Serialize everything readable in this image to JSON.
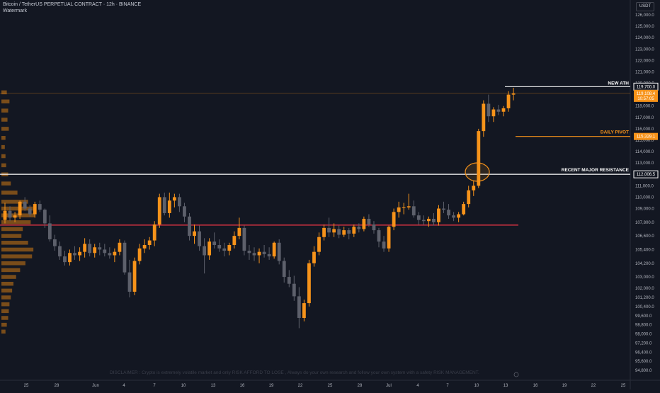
{
  "header": {
    "title": "Bitcoin / TetherUS PERPETUAL CONTRACT · 12h · BINANCE",
    "watermark": "Watermark",
    "currency": "USDT"
  },
  "disclaimer": "DISCLAIMER : Crypto is extremely volatile market and only RISK AFFORD TO LOSE , Always do your own research and follow your own system with a safety RISK MANAGEMENT.",
  "colors": {
    "background": "#131722",
    "bull": "#f7931a",
    "bear": "#5d606b",
    "resistance_line": "#ffffff",
    "pivot_line": "#f7931a",
    "support_line": "#f23645"
  },
  "chart_data": {
    "type": "candlestick",
    "x_tick_labels": [
      "25",
      "28",
      "Jun",
      "4",
      "7",
      "10",
      "13",
      "16",
      "19",
      "22",
      "25",
      "28",
      "Jul",
      "4",
      "7",
      "10",
      "13",
      "16",
      "19",
      "22",
      "25"
    ],
    "y_tick_labels": [
      "126,000.0",
      "125,000.0",
      "124,000.0",
      "123,000.0",
      "122,000.0",
      "121,000.0",
      "120,000.0",
      "118,000.0",
      "117,000.0",
      "116,000.0",
      "115,000.0",
      "114,000.0",
      "113,000.0",
      "111,000.0",
      "110,000.0",
      "109,000.0",
      "107,800.0",
      "106,600.0",
      "105,400.0",
      "104,200.0",
      "103,000.0",
      "102,000.0",
      "101,200.0",
      "100,400.0",
      "99,600.0",
      "98,800.0",
      "98,000.0",
      "97,200.0",
      "96,400.0",
      "95,600.0",
      "94,800.0"
    ],
    "price_badges": [
      {
        "label": "119,700.0"
      },
      {
        "label": "119,108.4",
        "sub": "10:57:05"
      },
      {
        "label": "115,329.1"
      },
      {
        "label": "112,006.5"
      }
    ],
    "levels": [
      {
        "name": "NEW ATH",
        "price": 119700
      },
      {
        "name": "DAILY PIVOT",
        "price": 115329
      },
      {
        "name": "RECENT MAJOR RESISTANCE",
        "price": 112006
      },
      {
        "name": "",
        "price": 107550
      }
    ],
    "last_price": 119108.4,
    "countdown": "10:57:05",
    "annotations": [
      "breakout circle at 10 Jul"
    ],
    "candles": [
      [
        108000,
        109500,
        107700,
        108800
      ],
      [
        108800,
        109200,
        107900,
        108200
      ],
      [
        108200,
        108700,
        107800,
        108400
      ],
      [
        108400,
        109700,
        108100,
        109600
      ],
      [
        109600,
        110000,
        108800,
        109000
      ],
      [
        109000,
        109300,
        108300,
        108500
      ],
      [
        108500,
        109600,
        108200,
        109400
      ],
      [
        109400,
        109700,
        108700,
        108900
      ],
      [
        108900,
        109000,
        107300,
        107700
      ],
      [
        107700,
        108400,
        106100,
        106300
      ],
      [
        106300,
        106700,
        105300,
        105700
      ],
      [
        105700,
        106100,
        104500,
        104800
      ],
      [
        104800,
        105300,
        104000,
        104300
      ],
      [
        104300,
        105400,
        104000,
        105100
      ],
      [
        105100,
        105700,
        104500,
        104900
      ],
      [
        104900,
        105600,
        104400,
        105200
      ],
      [
        105200,
        106400,
        104700,
        105900
      ],
      [
        105900,
        106300,
        104800,
        105100
      ],
      [
        105100,
        105900,
        104700,
        105600
      ],
      [
        105600,
        106000,
        104900,
        105400
      ],
      [
        105400,
        105900,
        104800,
        105100
      ],
      [
        105100,
        105600,
        104600,
        104900
      ],
      [
        104900,
        105500,
        104300,
        105200
      ],
      [
        105200,
        106300,
        104900,
        106000
      ],
      [
        106000,
        106200,
        103200,
        103400
      ],
      [
        103400,
        104500,
        101200,
        101700
      ],
      [
        101700,
        104700,
        101400,
        104400
      ],
      [
        104400,
        105900,
        104100,
        105500
      ],
      [
        105500,
        106300,
        105100,
        105800
      ],
      [
        105800,
        106500,
        105400,
        106200
      ],
      [
        106200,
        107900,
        105700,
        107600
      ],
      [
        107600,
        110300,
        107300,
        110000
      ],
      [
        110000,
        110400,
        108400,
        108600
      ],
      [
        108600,
        110400,
        108200,
        109700
      ],
      [
        109700,
        110300,
        109100,
        110000
      ],
      [
        110000,
        110300,
        108700,
        109200
      ],
      [
        109200,
        109500,
        107800,
        108300
      ],
      [
        108300,
        108600,
        106200,
        106600
      ],
      [
        106600,
        107600,
        105900,
        107000
      ],
      [
        107000,
        107500,
        105300,
        105700
      ],
      [
        105700,
        106400,
        103300,
        104900
      ],
      [
        104900,
        106400,
        104500,
        106100
      ],
      [
        106100,
        106900,
        105500,
        105800
      ],
      [
        105800,
        106300,
        105200,
        105500
      ],
      [
        105500,
        106000,
        104800,
        105300
      ],
      [
        105300,
        106000,
        104900,
        105800
      ],
      [
        105800,
        107000,
        105500,
        106600
      ],
      [
        106600,
        108200,
        106300,
        107300
      ],
      [
        107300,
        107500,
        104900,
        105300
      ],
      [
        105300,
        105800,
        104500,
        105100
      ],
      [
        105100,
        105600,
        104400,
        104900
      ],
      [
        104900,
        105500,
        104200,
        105200
      ],
      [
        105200,
        105800,
        104700,
        105000
      ],
      [
        105000,
        105600,
        104500,
        104800
      ],
      [
        104800,
        106100,
        104600,
        106000
      ],
      [
        106000,
        106300,
        104100,
        104400
      ],
      [
        104400,
        104700,
        102500,
        103000
      ],
      [
        103000,
        103600,
        102100,
        102400
      ],
      [
        102400,
        103100,
        100900,
        101300
      ],
      [
        101300,
        102100,
        98500,
        99400
      ],
      [
        99400,
        101000,
        99100,
        100700
      ],
      [
        100700,
        104500,
        100400,
        104200
      ],
      [
        104200,
        105700,
        103900,
        105200
      ],
      [
        105200,
        106900,
        104900,
        106500
      ],
      [
        106500,
        107600,
        106200,
        107300
      ],
      [
        107300,
        108200,
        106500,
        106900
      ],
      [
        106900,
        107700,
        106500,
        107200
      ],
      [
        107200,
        107500,
        106400,
        106700
      ],
      [
        106700,
        107400,
        106500,
        107100
      ],
      [
        107100,
        107300,
        106300,
        106800
      ],
      [
        106800,
        107600,
        106500,
        107400
      ],
      [
        107400,
        107700,
        106900,
        107200
      ],
      [
        107200,
        108300,
        107000,
        108100
      ],
      [
        108100,
        108500,
        107400,
        107600
      ],
      [
        107600,
        107900,
        106800,
        107100
      ],
      [
        107100,
        107300,
        105600,
        106100
      ],
      [
        106100,
        106600,
        105200,
        105500
      ],
      [
        105500,
        107500,
        105200,
        107400
      ],
      [
        107400,
        109000,
        107100,
        108700
      ],
      [
        108700,
        109600,
        108200,
        109100
      ],
      [
        109100,
        109500,
        108500,
        109100
      ],
      [
        109100,
        110300,
        108900,
        109200
      ],
      [
        109200,
        109700,
        108200,
        108400
      ],
      [
        108400,
        108700,
        107600,
        108000
      ],
      [
        108000,
        108400,
        107600,
        107900
      ],
      [
        107900,
        108300,
        107400,
        108100
      ],
      [
        108100,
        108600,
        107500,
        107800
      ],
      [
        107800,
        109300,
        107500,
        109000
      ],
      [
        109000,
        109600,
        108600,
        108900
      ],
      [
        108900,
        109400,
        108100,
        108400
      ],
      [
        108400,
        108700,
        107900,
        108200
      ],
      [
        108200,
        108700,
        107800,
        108500
      ],
      [
        108500,
        109600,
        108400,
        109400
      ],
      [
        109400,
        111000,
        109100,
        110600
      ],
      [
        110600,
        111400,
        110100,
        111000
      ],
      [
        111000,
        116000,
        110800,
        115800
      ],
      [
        115800,
        118500,
        115300,
        118200
      ],
      [
        118200,
        119000,
        116600,
        117100
      ],
      [
        117100,
        117900,
        116600,
        117700
      ],
      [
        117700,
        118100,
        117200,
        117500
      ],
      [
        117500,
        118000,
        117100,
        117800
      ],
      [
        117800,
        119300,
        117500,
        119000
      ],
      [
        119000,
        119600,
        118500,
        119100
      ]
    ],
    "volume_profile": [
      [
        119200,
        6
      ],
      [
        118400,
        10
      ],
      [
        117600,
        8
      ],
      [
        116800,
        7
      ],
      [
        116000,
        9
      ],
      [
        115200,
        4
      ],
      [
        114400,
        3
      ],
      [
        113600,
        4
      ],
      [
        112800,
        5
      ],
      [
        112000,
        8
      ],
      [
        111200,
        12
      ],
      [
        110400,
        22
      ],
      [
        109600,
        38
      ],
      [
        109000,
        45
      ],
      [
        108400,
        48
      ],
      [
        107800,
        42
      ],
      [
        107200,
        30
      ],
      [
        106600,
        28
      ],
      [
        106000,
        38
      ],
      [
        105400,
        46
      ],
      [
        104800,
        44
      ],
      [
        104200,
        34
      ],
      [
        103600,
        26
      ],
      [
        103000,
        20
      ],
      [
        102400,
        16
      ],
      [
        101800,
        14
      ],
      [
        101200,
        12
      ],
      [
        100600,
        10
      ],
      [
        100000,
        9
      ],
      [
        99400,
        8
      ],
      [
        98800,
        6
      ],
      [
        98200,
        4
      ]
    ]
  }
}
